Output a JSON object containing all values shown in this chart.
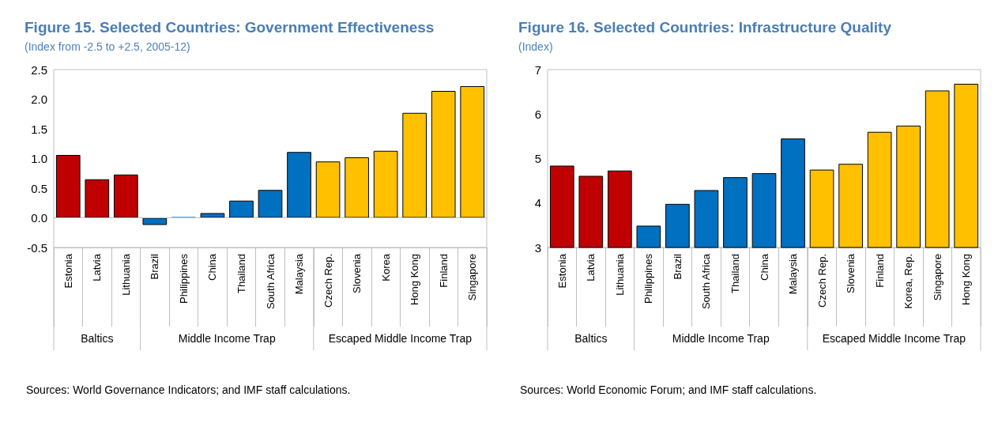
{
  "chart_data": [
    {
      "type": "bar",
      "title": "Figure 15. Selected Countries: Government Effectiveness",
      "subtitle": "(Index from -2.5 to +2.5, 2005-12)",
      "categories": [
        "Estonia",
        "Latvia",
        "Lithuania",
        "Brazil",
        "Philippines",
        "China",
        "Thailand",
        "South Africa",
        "Malaysia",
        "Czech Rep.",
        "Slovenia",
        "Korea",
        "Hong Kong",
        "Finland",
        "Singapore"
      ],
      "values": [
        1.06,
        0.65,
        0.73,
        -0.12,
        0.01,
        0.08,
        0.29,
        0.47,
        1.11,
        0.95,
        1.02,
        1.13,
        1.77,
        2.14,
        2.22
      ],
      "colors": [
        "#c00000",
        "#c00000",
        "#c00000",
        "#0070c0",
        "#0070c0",
        "#0070c0",
        "#0070c0",
        "#0070c0",
        "#0070c0",
        "#ffc000",
        "#ffc000",
        "#ffc000",
        "#ffc000",
        "#ffc000",
        "#ffc000"
      ],
      "ylim": [
        -0.5,
        2.5
      ],
      "yticks": [
        -0.5,
        {
          "value": 0,
          "label": "0.0"
        },
        0.5,
        {
          "value": 1,
          "label": "1.0"
        },
        1.5,
        {
          "value": 2,
          "label": "2.0"
        },
        2.5
      ],
      "grid": false,
      "ref_lines": [
        {
          "axis": "y",
          "value": 0,
          "color": "#bfbfbf"
        }
      ],
      "annotations": [
        "Baltics",
        "Middle Income Trap",
        "Escaped Middle Income Trap",
        "Sources: World Governance Indicators; and IMF staff calculations."
      ]
    },
    {
      "type": "bar",
      "title": "Figure 16. Selected Countries: Infrastructure Quality",
      "subtitle": "(Index)",
      "categories": [
        "Estonia",
        "Latvia",
        "Lithuania",
        "Philippines",
        "Brazil",
        "South Africa",
        "Thailand",
        "China",
        "Malaysia",
        "Czech Rep.",
        "Slovenia",
        "Finland",
        "Korea, Rep.",
        "Singapore",
        "Hong Kong"
      ],
      "values": [
        4.84,
        4.61,
        4.73,
        3.49,
        3.98,
        4.29,
        4.58,
        4.67,
        5.45,
        4.75,
        4.88,
        5.6,
        5.74,
        6.53,
        6.68
      ],
      "colors": [
        "#c00000",
        "#c00000",
        "#c00000",
        "#0070c0",
        "#0070c0",
        "#0070c0",
        "#0070c0",
        "#0070c0",
        "#0070c0",
        "#ffc000",
        "#ffc000",
        "#ffc000",
        "#ffc000",
        "#ffc000",
        "#ffc000"
      ],
      "ylim": [
        3,
        7
      ],
      "yticks": [
        3,
        4,
        5,
        6,
        7
      ],
      "grid": false,
      "annotations": [
        "Baltics",
        "Middle Income Trap",
        "Escaped Middle Income Trap",
        "Sources: World Economic Forum; and IMF staff calculations."
      ]
    }
  ]
}
